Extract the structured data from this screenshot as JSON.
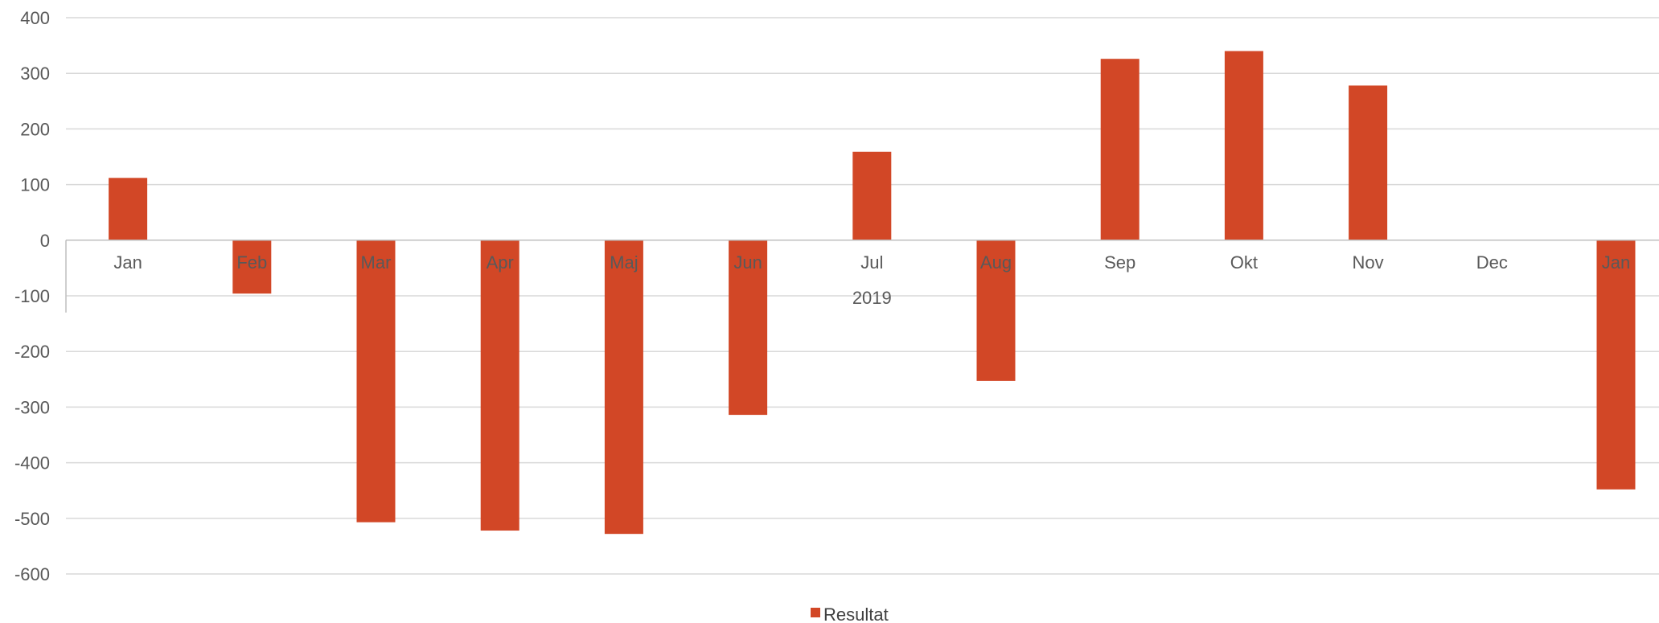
{
  "chart_data": {
    "type": "bar",
    "title": "",
    "xlabel": "",
    "ylabel": "",
    "categories": [
      "Jan",
      "Feb",
      "Mar",
      "Apr",
      "Maj",
      "Jun",
      "Jul",
      "Aug",
      "Sep",
      "Okt",
      "Nov",
      "Dec",
      "Jan"
    ],
    "category_group": "2019",
    "series": [
      {
        "name": "Resultat",
        "color": "#D24726",
        "values": [
          112,
          -96,
          -507,
          -522,
          -528,
          -314,
          159,
          -253,
          326,
          340,
          278,
          0,
          -448
        ]
      }
    ],
    "ylim": [
      -600,
      400
    ],
    "yticks": [
      400,
      300,
      200,
      100,
      0,
      -100,
      -200,
      -300,
      -400,
      -500,
      -600
    ],
    "grid": true,
    "legend_position": "bottom"
  }
}
